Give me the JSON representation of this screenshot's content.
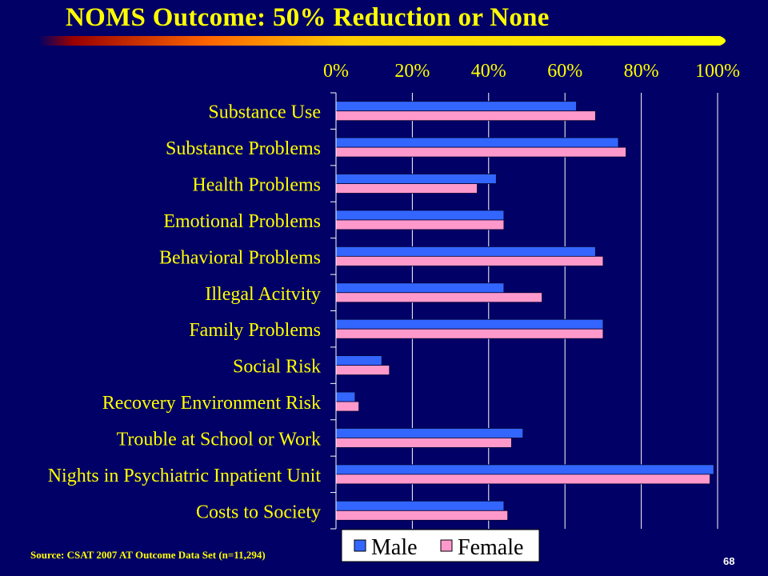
{
  "slide": {
    "title": "NOMS Outcome: 50% Reduction or None",
    "source": "Source:  CSAT 2007 AT Outcome Data Set (n=11,294)",
    "page_number": "68"
  },
  "colors": {
    "background": "#000066",
    "title": "#ffff00",
    "male": "#3366ff",
    "female": "#ff99cc",
    "text": "#ffff00",
    "grid": "#ffffff"
  },
  "chart_data": {
    "type": "bar",
    "orientation": "horizontal",
    "categories": [
      "Substance Use",
      "Substance Problems",
      "Health Problems",
      "Emotional Problems",
      "Behavioral Problems",
      "Illegal Acitvity",
      "Family Problems",
      "Social Risk",
      "Recovery Environment Risk",
      "Trouble at School or Work",
      "Nights in Psychiatric Inpatient Unit",
      "Costs to Society"
    ],
    "series": [
      {
        "name": "Male",
        "values": [
          63,
          74,
          42,
          44,
          68,
          44,
          70,
          12,
          5,
          49,
          99,
          44
        ]
      },
      {
        "name": "Female",
        "values": [
          68,
          76,
          37,
          44,
          70,
          54,
          70,
          14,
          6,
          46,
          98,
          45
        ]
      }
    ],
    "x_ticks": [
      "0%",
      "20%",
      "40%",
      "60%",
      "80%",
      "100%"
    ],
    "xlim": [
      0,
      100
    ],
    "x_axis_position": "top",
    "grid": true,
    "legend": "bottom"
  }
}
